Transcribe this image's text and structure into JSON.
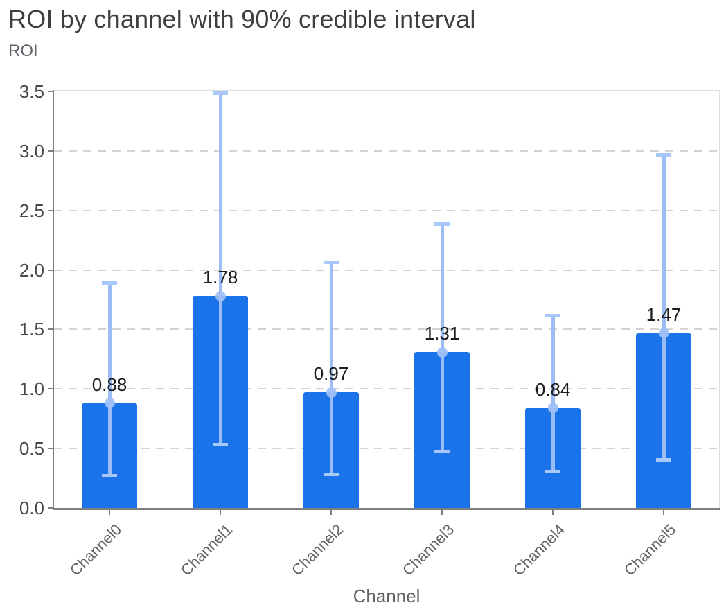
{
  "header": {
    "title": "ROI by channel with 90% credible interval",
    "y_axis_label": "ROI"
  },
  "chart_data": {
    "type": "bar",
    "title": "ROI by channel with 90% credible interval",
    "ylabel": "ROI",
    "xlabel": "Channel",
    "categories": [
      "Channel0",
      "Channel1",
      "Channel2",
      "Channel3",
      "Channel4",
      "Channel5"
    ],
    "series": [
      {
        "name": "ROI mean",
        "values": [
          0.88,
          1.78,
          0.97,
          1.31,
          0.84,
          1.47
        ]
      },
      {
        "name": "90% credible interval low",
        "values": [
          0.27,
          0.53,
          0.28,
          0.47,
          0.3,
          0.4
        ]
      },
      {
        "name": "90% credible interval high",
        "values": [
          1.89,
          3.49,
          2.07,
          2.39,
          1.62,
          2.97
        ]
      }
    ],
    "value_labels": [
      "0.88",
      "1.78",
      "0.97",
      "1.31",
      "0.84",
      "1.47"
    ],
    "yticks": [
      "0.0",
      "0.5",
      "1.0",
      "1.5",
      "2.0",
      "2.5",
      "3.0",
      "3.5"
    ],
    "ylim": [
      0,
      3.5
    ],
    "grid": "dashed horizontal gridlines",
    "legend": "none",
    "error_bar_caps": true,
    "colors": {
      "bar": "#1A73E8",
      "error_line": "#9BBCF5",
      "error_cap": "#A9C8FA",
      "point_marker": "#9FC0F6",
      "title_text": "#3C4043",
      "axis_label_text": "#5F6368",
      "tick_label_text": "#474747",
      "value_label_text": "#1C1C1C",
      "axis_line": "#7E7E7E",
      "plot_border": "#DEDEDE",
      "gridline": "#D4D4D4"
    }
  }
}
